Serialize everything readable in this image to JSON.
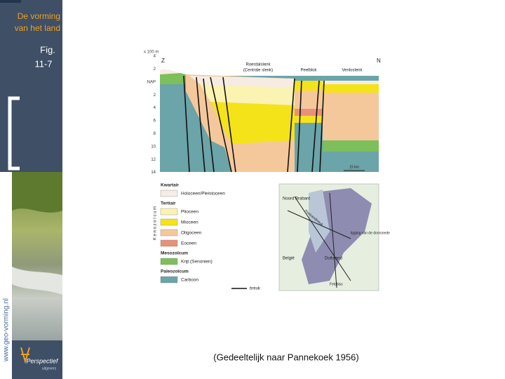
{
  "sidebar": {
    "title": [
      "De vorming",
      "van het land"
    ],
    "fig": [
      "Fig.",
      "11-7"
    ],
    "website": "www.geo-vorming.nl",
    "logo": {
      "name": "Perspectief",
      "sub": "uitgevers"
    }
  },
  "figure": {
    "cross_section": {
      "unit": "x 100 m",
      "south": "Z",
      "north": "N",
      "regions": [
        {
          "name": "Roerdalslenk",
          "sub": "(Centrale slenk)"
        },
        {
          "name": "Peelblok"
        },
        {
          "name": "Venloslenk"
        }
      ],
      "depth_labels": [
        "4",
        "2",
        "NAP",
        "2",
        "4",
        "6",
        "8",
        "10",
        "12",
        "14"
      ],
      "scale": "15 km"
    },
    "legend": {
      "era_vertical": "K e n o z o ï c u m",
      "groups": [
        {
          "heading": "Kwartair",
          "items": [
            "Holoceen/Pleistoceen"
          ]
        },
        {
          "heading": "Tertiair",
          "items": [
            "Plioceen",
            "Mioceen",
            "Oligoceen",
            "Eoceen"
          ]
        },
        {
          "heading": "Mesozoïcum",
          "items": [
            "Krijt (Senonien)"
          ]
        },
        {
          "heading": "Paleozoïcum",
          "items": [
            "Carboon"
          ]
        }
      ],
      "fault": "breuk"
    },
    "map": {
      "labels": [
        "Noord Brabant",
        "Peelrandbreuk",
        "ligging van de doorsnede",
        "België",
        "Duitsland",
        "Feldbiss"
      ]
    }
  },
  "caption": "(Gedeeltelijk naar Pannekoek 1956)"
}
